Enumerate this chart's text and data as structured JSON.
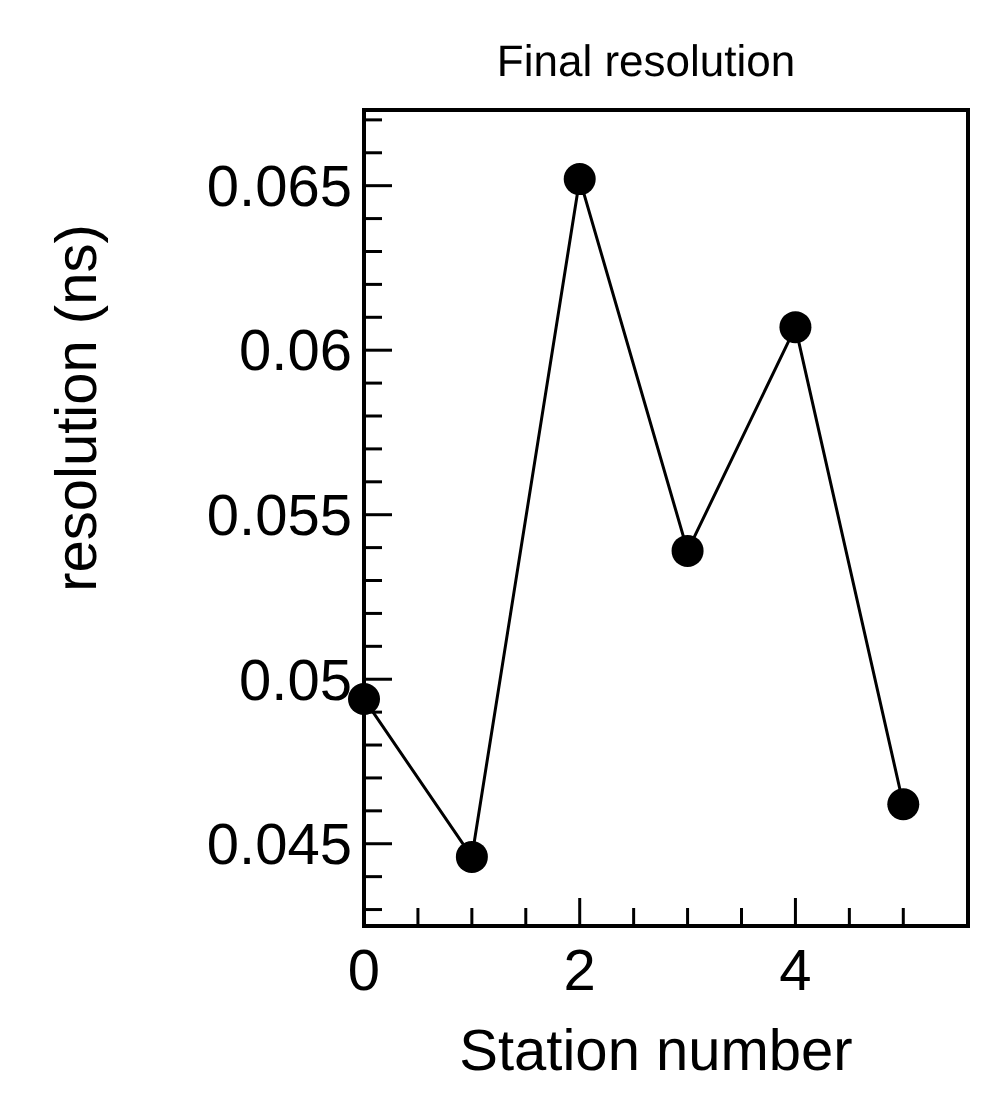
{
  "chart_data": {
    "type": "line",
    "title": "Final resolution",
    "xlabel": "Station number",
    "ylabel": "resolution (ns)",
    "x": [
      0,
      1,
      2,
      3,
      4,
      5
    ],
    "series": [
      {
        "color": "#000000",
        "values": [
          0.0494,
          0.0446,
          0.0652,
          0.0539,
          0.0607,
          0.0462
        ]
      }
    ],
    "xlim": [
      0,
      5.6
    ],
    "xticks": [
      0,
      {
        "value": 0.5,
        "label": null
      },
      {
        "value": 1,
        "label": null
      },
      {
        "value": 1.5,
        "label": null
      },
      2,
      {
        "value": 2.5,
        "label": null
      },
      {
        "value": 3,
        "label": null
      },
      {
        "value": 3.5,
        "label": null
      },
      4,
      {
        "value": 4.5,
        "label": null
      },
      {
        "value": 5,
        "label": null
      }
    ],
    "ylim": [
      0.0425,
      0.0673
    ],
    "yticks": [
      {
        "value": 0.043,
        "label": null
      },
      {
        "value": 0.044,
        "label": null
      },
      0.045,
      {
        "value": 0.046,
        "label": null
      },
      {
        "value": 0.047,
        "label": null
      },
      {
        "value": 0.048,
        "label": null
      },
      {
        "value": 0.049,
        "label": null
      },
      0.05,
      {
        "value": 0.051,
        "label": null
      },
      {
        "value": 0.052,
        "label": null
      },
      {
        "value": 0.053,
        "label": null
      },
      {
        "value": 0.054,
        "label": null
      },
      0.055,
      {
        "value": 0.056,
        "label": null
      },
      {
        "value": 0.057,
        "label": null
      },
      {
        "value": 0.058,
        "label": null
      },
      {
        "value": 0.059,
        "label": null
      },
      0.06,
      {
        "value": 0.061,
        "label": null
      },
      {
        "value": 0.062,
        "label": null
      },
      {
        "value": 0.063,
        "label": null
      },
      {
        "value": 0.064,
        "label": null
      },
      0.065,
      {
        "value": 0.066,
        "label": null
      },
      {
        "value": 0.067,
        "label": null
      }
    ],
    "marker": "circle",
    "line_style": "solid",
    "grid": false
  }
}
